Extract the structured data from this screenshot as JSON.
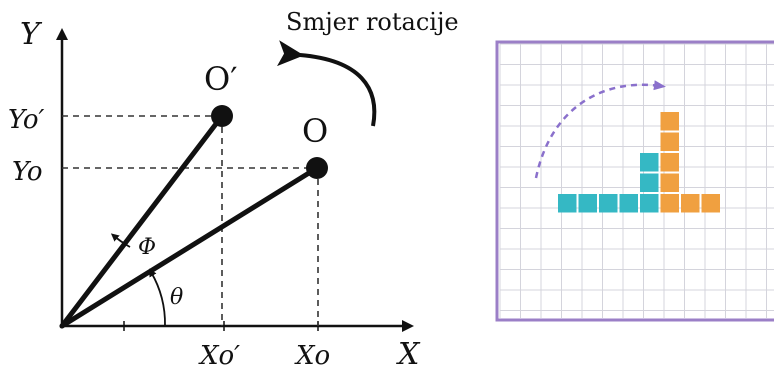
{
  "axes": {
    "y_label": "Y",
    "x_label": "X",
    "y_tick_o_prime": "Yo′",
    "y_tick_o": "Yo",
    "x_tick_o_prime": "Xo′",
    "x_tick_o": "Xo"
  },
  "points": {
    "o_prime": "O′",
    "o": "O"
  },
  "angles": {
    "phi": "Φ",
    "theta": "θ"
  },
  "rotation_label": "Smjer rotacije",
  "colors": {
    "line": "#111111",
    "grid_border": "#9b7fc7",
    "grid_line": "#d4d4dc",
    "teal": "#35b8c4",
    "orange": "#f0a040",
    "dashed_arrow": "#8a70cc"
  },
  "grid": {
    "cols": 14,
    "rows": 14,
    "teal_cells": [
      [
        2,
        7
      ],
      [
        3,
        7
      ],
      [
        4,
        7
      ],
      [
        5,
        7
      ],
      [
        6,
        7
      ],
      [
        6,
        6
      ],
      [
        6,
        5
      ]
    ],
    "orange_cells": [
      [
        7,
        7
      ],
      [
        8,
        7
      ],
      [
        9,
        7
      ],
      [
        7,
        6
      ],
      [
        7,
        5
      ],
      [
        7,
        4
      ],
      [
        7,
        3
      ]
    ]
  }
}
